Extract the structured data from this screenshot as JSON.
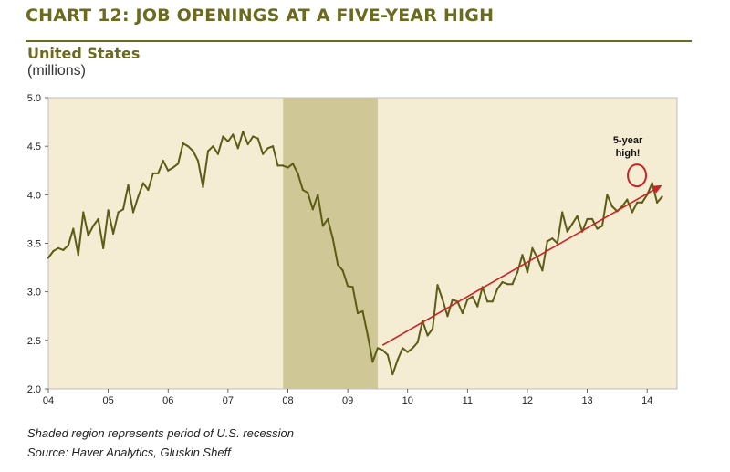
{
  "header": {
    "title": "CHART 12: JOB OPENINGS AT A FIVE-YEAR HIGH",
    "subtitle": "United States",
    "units": "(millions)"
  },
  "footer": {
    "note": "Shaded region represents period of U.S. recession",
    "source": "Source: Haver Analytics, Gluskin Sheff"
  },
  "colors": {
    "plot_background": "#f5ecd4",
    "recession_shade": "#cfc796",
    "series_line": "#5c5c14",
    "trend_arrow": "#cc2222",
    "title_color": "#6b6b1f"
  },
  "chart_data": {
    "type": "line",
    "title": "CHART 12: JOB OPENINGS AT A FIVE-YEAR HIGH",
    "subtitle": "United States",
    "ylabel": "(millions)",
    "xlabel": "",
    "xlim": [
      2004,
      2014.5
    ],
    "ylim": [
      2.0,
      5.0
    ],
    "yticks": [
      "5.0",
      "4.5",
      "4.0",
      "3.5",
      "3.0",
      "2.5",
      "2.0"
    ],
    "ytick_values": [
      5.0,
      4.5,
      4.0,
      3.5,
      3.0,
      2.5,
      2.0
    ],
    "xticks": [
      "04",
      "05",
      "06",
      "07",
      "08",
      "09",
      "10",
      "11",
      "12",
      "13",
      "14"
    ],
    "xtick_values": [
      2004,
      2005,
      2006,
      2007,
      2008,
      2009,
      2010,
      2011,
      2012,
      2013,
      2014
    ],
    "recession": {
      "start": 2007.92,
      "end": 2009.5,
      "label": "Shaded region represents period of U.S. recession"
    },
    "series": [
      {
        "name": "Job openings",
        "x_start": 2004.0,
        "x_step": 0.0833333,
        "values": [
          3.35,
          3.42,
          3.45,
          3.43,
          3.48,
          3.65,
          3.38,
          3.82,
          3.58,
          3.68,
          3.75,
          3.45,
          3.84,
          3.6,
          3.82,
          3.85,
          4.1,
          3.82,
          3.98,
          4.12,
          4.05,
          4.22,
          4.22,
          4.35,
          4.25,
          4.28,
          4.32,
          4.53,
          4.5,
          4.45,
          4.35,
          4.08,
          4.45,
          4.5,
          4.42,
          4.6,
          4.55,
          4.62,
          4.48,
          4.65,
          4.52,
          4.6,
          4.58,
          4.42,
          4.48,
          4.5,
          4.3,
          4.3,
          4.28,
          4.32,
          4.22,
          4.05,
          4.02,
          3.85,
          4.0,
          3.68,
          3.75,
          3.55,
          3.28,
          3.22,
          3.06,
          3.05,
          2.78,
          2.8,
          2.55,
          2.28,
          2.42,
          2.4,
          2.35,
          2.15,
          2.3,
          2.42,
          2.38,
          2.42,
          2.48,
          2.7,
          2.55,
          2.62,
          3.07,
          2.92,
          2.75,
          2.92,
          2.9,
          2.78,
          2.92,
          2.95,
          2.85,
          3.05,
          2.9,
          2.9,
          3.03,
          3.1,
          3.08,
          3.08,
          3.2,
          3.38,
          3.2,
          3.45,
          3.35,
          3.22,
          3.52,
          3.55,
          3.5,
          3.82,
          3.62,
          3.7,
          3.78,
          3.62,
          3.75,
          3.75,
          3.65,
          3.68,
          4.0,
          3.88,
          3.83,
          3.88,
          3.95,
          3.82,
          3.92,
          3.92,
          4.0,
          4.12,
          3.92,
          3.98
        ]
      }
    ],
    "trend": {
      "x": [
        2009.58,
        2014.25
      ],
      "y": [
        2.45,
        4.1
      ]
    },
    "annotation": {
      "text_line1": "5-year",
      "text_line2": "high!",
      "x": 2013.83,
      "y": 4.2
    }
  }
}
